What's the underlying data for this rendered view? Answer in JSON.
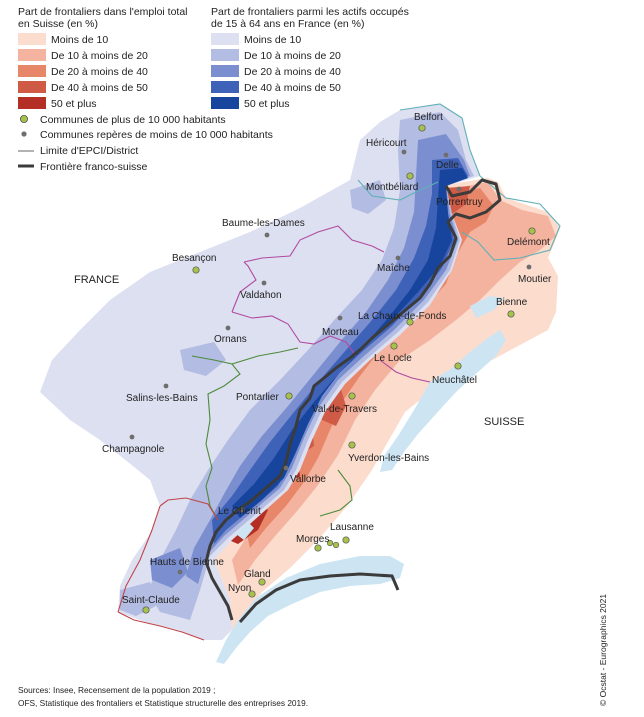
{
  "legend": {
    "swiss": {
      "title": [
        "Part de frontaliers dans l'emploi total",
        "en Suisse (en %)"
      ],
      "classes": [
        {
          "label": "Moins de 10",
          "color": "#fbdccd"
        },
        {
          "label": "De 10 à moins de 20",
          "color": "#f4b39f"
        },
        {
          "label": "De 20 à moins de 40",
          "color": "#e88669"
        },
        {
          "label": "De 40 à moins de 50",
          "color": "#cf5a45"
        },
        {
          "label": "50 et plus",
          "color": "#b32f26"
        }
      ]
    },
    "france": {
      "title": [
        "Part de frontaliers parmi les actifs occupés",
        "de 15 à 64 ans en France (en %)"
      ],
      "classes": [
        {
          "label": "Moins de 10",
          "color": "#dde0f1"
        },
        {
          "label": "De 10 à moins de 20",
          "color": "#b3bce2"
        },
        {
          "label": "De 20 à moins de 40",
          "color": "#7b8fd0"
        },
        {
          "label": "De 40 à moins de 50",
          "color": "#3f62b9"
        },
        {
          "label": "50 et plus",
          "color": "#17459e"
        }
      ]
    },
    "symbols": [
      {
        "label": "Communes de plus de 10 000 habitants",
        "kind": "big-dot"
      },
      {
        "label": "Communes repères de moins de 10 000 habitants",
        "kind": "small-dot"
      },
      {
        "label": "Limite d'EPCI/District",
        "kind": "thin-line"
      },
      {
        "label": "Frontière franco-suisse",
        "kind": "thick-line"
      }
    ]
  },
  "countries": {
    "france": "FRANCE",
    "switzerland": "SUISSE"
  },
  "cities": [
    {
      "name": "Belfort",
      "kind": "big"
    },
    {
      "name": "Héricourt",
      "kind": "small"
    },
    {
      "name": "Delle",
      "kind": "small"
    },
    {
      "name": "Montbéliard",
      "kind": "big"
    },
    {
      "name": "Porrentruy",
      "kind": "small"
    },
    {
      "name": "Delémont",
      "kind": "big"
    },
    {
      "name": "Baume-les-Dames",
      "kind": "small"
    },
    {
      "name": "Besançon",
      "kind": "big"
    },
    {
      "name": "Maîche",
      "kind": "small"
    },
    {
      "name": "Moutier",
      "kind": "small"
    },
    {
      "name": "Valdahon",
      "kind": "small"
    },
    {
      "name": "Bienne",
      "kind": "big"
    },
    {
      "name": "La Chaux-de-Fonds",
      "kind": "big"
    },
    {
      "name": "Morteau",
      "kind": "small"
    },
    {
      "name": "Ornans",
      "kind": "small"
    },
    {
      "name": "Le Locle",
      "kind": "big"
    },
    {
      "name": "Neuchâtel",
      "kind": "big"
    },
    {
      "name": "Salins-les-Bains",
      "kind": "small"
    },
    {
      "name": "Pontarlier",
      "kind": "big"
    },
    {
      "name": "Val-de-Travers",
      "kind": "big"
    },
    {
      "name": "Champagnole",
      "kind": "small"
    },
    {
      "name": "Yverdon-les-Bains",
      "kind": "big"
    },
    {
      "name": "Vallorbe",
      "kind": "small"
    },
    {
      "name": "Le Chenit",
      "kind": "small"
    },
    {
      "name": "Lausanne",
      "kind": "big"
    },
    {
      "name": "Morges",
      "kind": "big"
    },
    {
      "name": "Hauts de Bienne",
      "kind": "small"
    },
    {
      "name": "Gland",
      "kind": "big"
    },
    {
      "name": "Nyon",
      "kind": "big"
    },
    {
      "name": "Saint-Claude",
      "kind": "big"
    }
  ],
  "source": [
    "Sources: Insee, Recensement de la population 2019 ;",
    "OFS, Statistique des frontaliers et Statistique structurelle des entreprises 2019."
  ],
  "copyright": "© Ocstat - Eurographics 2021",
  "colors": {
    "lake": "#cde5f3",
    "dot_big": "#a7c24a",
    "dot_small": "#6e6e6e",
    "epci_purple": "#b04aa0",
    "epci_green": "#4d8a3a",
    "epci_red": "#c0454a",
    "epci_teal": "#5fb0b8",
    "border": "#3b3b3b"
  }
}
